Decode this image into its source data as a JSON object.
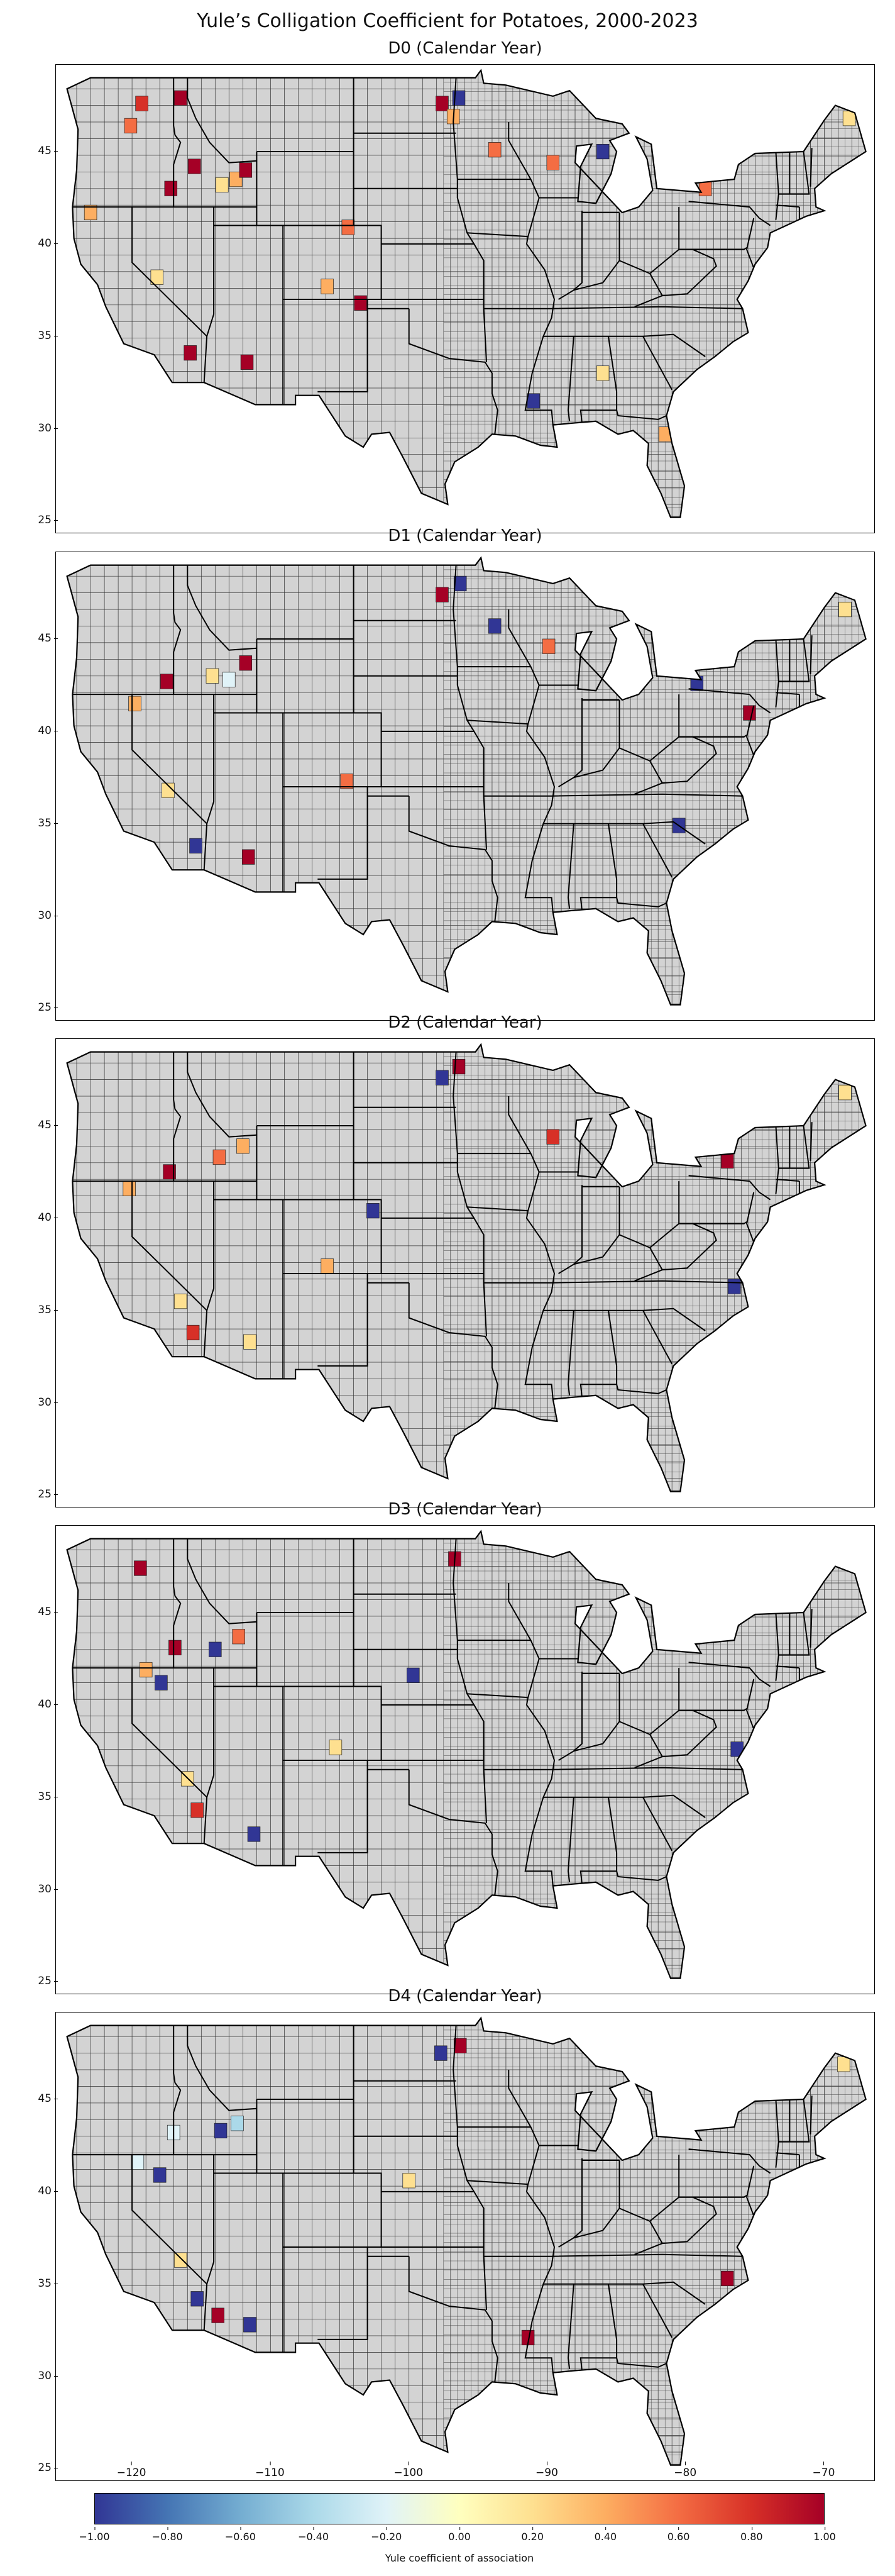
{
  "title": "Yule’s Colligation Coefficient for Potatoes, 2000-2023",
  "panels": [
    {
      "title": "D0 (Calendar Year)"
    },
    {
      "title": "D1 (Calendar Year)"
    },
    {
      "title": "D2 (Calendar Year)"
    },
    {
      "title": "D3 (Calendar Year)"
    },
    {
      "title": "D4 (Calendar Year)"
    }
  ],
  "map": {
    "lat_ticks": [
      "25",
      "30",
      "35",
      "40",
      "45"
    ],
    "lon_ticks": [
      "−120",
      "−110",
      "−100",
      "−90",
      "−80",
      "−70"
    ],
    "no_data_color": "#d3d3d3",
    "border_color": "#000000"
  },
  "colorbar": {
    "label": "Yule coefficient of association",
    "ticks": [
      "−1.00",
      "−0.80",
      "−0.60",
      "−0.40",
      "−0.20",
      "0.00",
      "0.20",
      "0.40",
      "0.60",
      "0.80",
      "1.00"
    ],
    "colormap": "RdYlBu_r",
    "stops": [
      "#313695",
      "#4575b4",
      "#74add1",
      "#abd9e9",
      "#e0f3f8",
      "#ffffbf",
      "#fee090",
      "#fdae61",
      "#f46d43",
      "#d73027",
      "#a50026"
    ]
  },
  "counties": [
    {
      "panel": 0,
      "lon": -117.2,
      "lat": 43.0,
      "value": 0.9
    },
    {
      "panel": 0,
      "lon": -113.5,
      "lat": 43.2,
      "value": 0.1
    },
    {
      "panel": 0,
      "lon": -112.5,
      "lat": 43.5,
      "value": 0.3
    },
    {
      "panel": 0,
      "lon": -111.8,
      "lat": 44.0,
      "value": 1.0
    },
    {
      "panel": 0,
      "lon": -115.5,
      "lat": 44.2,
      "value": 0.9
    },
    {
      "panel": 0,
      "lon": -118.2,
      "lat": 38.2,
      "value": 0.1
    },
    {
      "panel": 0,
      "lon": -115.8,
      "lat": 34.1,
      "value": 0.95
    },
    {
      "panel": 0,
      "lon": -111.7,
      "lat": 33.6,
      "value": 0.95
    },
    {
      "panel": 0,
      "lon": -123.0,
      "lat": 41.7,
      "value": 0.3
    },
    {
      "panel": 0,
      "lon": -120.1,
      "lat": 46.4,
      "value": 0.5
    },
    {
      "panel": 0,
      "lon": -119.3,
      "lat": 47.6,
      "value": 0.7
    },
    {
      "panel": 0,
      "lon": -116.5,
      "lat": 47.9,
      "value": 0.9
    },
    {
      "panel": 0,
      "lon": -105.9,
      "lat": 37.7,
      "value": 0.4
    },
    {
      "panel": 0,
      "lon": -103.5,
      "lat": 36.8,
      "value": 0.9
    },
    {
      "panel": 0,
      "lon": -104.4,
      "lat": 40.9,
      "value": 0.5
    },
    {
      "panel": 0,
      "lon": -97.6,
      "lat": 47.6,
      "value": 1.0
    },
    {
      "panel": 0,
      "lon": -96.8,
      "lat": 46.9,
      "value": 0.3
    },
    {
      "panel": 0,
      "lon": -96.4,
      "lat": 47.9,
      "value": -0.9
    },
    {
      "panel": 0,
      "lon": -93.8,
      "lat": 45.1,
      "value": 0.6
    },
    {
      "panel": 0,
      "lon": -89.6,
      "lat": 44.4,
      "value": 0.6
    },
    {
      "panel": 0,
      "lon": -86.0,
      "lat": 45.0,
      "value": -0.9
    },
    {
      "panel": 0,
      "lon": -78.6,
      "lat": 43.0,
      "value": 0.6
    },
    {
      "panel": 0,
      "lon": -68.2,
      "lat": 46.8,
      "value": 0.1
    },
    {
      "panel": 0,
      "lon": -86.0,
      "lat": 33.0,
      "value": 0.1
    },
    {
      "panel": 0,
      "lon": -91.0,
      "lat": 31.5,
      "value": -0.9
    },
    {
      "panel": 0,
      "lon": -81.5,
      "lat": 29.7,
      "value": 0.4
    },
    {
      "panel": 1,
      "lon": -117.5,
      "lat": 42.7,
      "value": 0.95
    },
    {
      "panel": 1,
      "lon": -114.2,
      "lat": 43.0,
      "value": 0.2
    },
    {
      "panel": 1,
      "lon": -113.0,
      "lat": 42.8,
      "value": -0.2
    },
    {
      "panel": 1,
      "lon": -111.8,
      "lat": 43.7,
      "value": 1.0
    },
    {
      "panel": 1,
      "lon": -119.8,
      "lat": 41.5,
      "value": 0.4
    },
    {
      "panel": 1,
      "lon": -117.4,
      "lat": 36.8,
      "value": 0.1
    },
    {
      "panel": 1,
      "lon": -115.4,
      "lat": 33.8,
      "value": -0.9
    },
    {
      "panel": 1,
      "lon": -111.6,
      "lat": 33.2,
      "value": 0.95
    },
    {
      "panel": 1,
      "lon": -104.5,
      "lat": 37.3,
      "value": 0.6
    },
    {
      "panel": 1,
      "lon": -97.6,
      "lat": 47.4,
      "value": 1.0
    },
    {
      "panel": 1,
      "lon": -96.3,
      "lat": 48.0,
      "value": -0.9
    },
    {
      "panel": 1,
      "lon": -93.8,
      "lat": 45.7,
      "value": -0.9
    },
    {
      "panel": 1,
      "lon": -89.9,
      "lat": 44.6,
      "value": 0.5
    },
    {
      "panel": 1,
      "lon": -79.2,
      "lat": 42.6,
      "value": -0.9
    },
    {
      "panel": 1,
      "lon": -75.4,
      "lat": 41.0,
      "value": 0.9
    },
    {
      "panel": 1,
      "lon": -68.5,
      "lat": 46.6,
      "value": 0.1
    },
    {
      "panel": 1,
      "lon": -80.5,
      "lat": 34.9,
      "value": -0.9
    },
    {
      "panel": 2,
      "lon": -117.3,
      "lat": 42.5,
      "value": 0.95
    },
    {
      "panel": 2,
      "lon": -113.7,
      "lat": 43.3,
      "value": 0.5
    },
    {
      "panel": 2,
      "lon": -112.0,
      "lat": 43.9,
      "value": 0.4
    },
    {
      "panel": 2,
      "lon": -120.2,
      "lat": 41.6,
      "value": 0.4
    },
    {
      "panel": 2,
      "lon": -116.5,
      "lat": 35.5,
      "value": 0.1
    },
    {
      "panel": 2,
      "lon": -115.6,
      "lat": 33.8,
      "value": 0.7
    },
    {
      "panel": 2,
      "lon": -111.5,
      "lat": 33.3,
      "value": 0.1
    },
    {
      "panel": 2,
      "lon": -105.9,
      "lat": 37.4,
      "value": 0.4
    },
    {
      "panel": 2,
      "lon": -102.6,
      "lat": 40.4,
      "value": -0.9
    },
    {
      "panel": 2,
      "lon": -97.6,
      "lat": 47.6,
      "value": -0.9
    },
    {
      "panel": 2,
      "lon": -96.4,
      "lat": 48.2,
      "value": 1.0
    },
    {
      "panel": 2,
      "lon": -89.6,
      "lat": 44.4,
      "value": 0.8
    },
    {
      "panel": 2,
      "lon": -77.0,
      "lat": 43.1,
      "value": 1.0
    },
    {
      "panel": 2,
      "lon": -76.5,
      "lat": 36.3,
      "value": -0.9
    },
    {
      "panel": 2,
      "lon": -68.5,
      "lat": 46.8,
      "value": 0.1
    },
    {
      "panel": 3,
      "lon": -116.9,
      "lat": 43.1,
      "value": 0.9
    },
    {
      "panel": 3,
      "lon": -114.0,
      "lat": 43.0,
      "value": -0.9
    },
    {
      "panel": 3,
      "lon": -112.3,
      "lat": 43.7,
      "value": 0.6
    },
    {
      "panel": 3,
      "lon": -119.4,
      "lat": 47.4,
      "value": 1.0
    },
    {
      "panel": 3,
      "lon": -119.0,
      "lat": 41.9,
      "value": 0.4
    },
    {
      "panel": 3,
      "lon": -117.9,
      "lat": 41.2,
      "value": -0.9
    },
    {
      "panel": 3,
      "lon": -116.0,
      "lat": 36.0,
      "value": 0.1
    },
    {
      "panel": 3,
      "lon": -115.3,
      "lat": 34.3,
      "value": 0.7
    },
    {
      "panel": 3,
      "lon": -111.2,
      "lat": 33.0,
      "value": -0.9
    },
    {
      "panel": 3,
      "lon": -105.3,
      "lat": 37.7,
      "value": 0.1
    },
    {
      "panel": 3,
      "lon": -96.7,
      "lat": 47.9,
      "value": 1.0
    },
    {
      "panel": 3,
      "lon": -99.7,
      "lat": 41.6,
      "value": -0.9
    },
    {
      "panel": 3,
      "lon": -76.3,
      "lat": 37.6,
      "value": -0.9
    },
    {
      "panel": 4,
      "lon": -117.0,
      "lat": 43.2,
      "value": -0.3
    },
    {
      "panel": 4,
      "lon": -113.6,
      "lat": 43.3,
      "value": -0.9
    },
    {
      "panel": 4,
      "lon": -112.4,
      "lat": 43.7,
      "value": -0.4
    },
    {
      "panel": 4,
      "lon": -119.6,
      "lat": 41.6,
      "value": -0.2
    },
    {
      "panel": 4,
      "lon": -118.0,
      "lat": 40.9,
      "value": -0.9
    },
    {
      "panel": 4,
      "lon": -116.5,
      "lat": 36.3,
      "value": 0.1
    },
    {
      "panel": 4,
      "lon": -115.3,
      "lat": 34.2,
      "value": -0.9
    },
    {
      "panel": 4,
      "lon": -113.8,
      "lat": 33.3,
      "value": 0.95
    },
    {
      "panel": 4,
      "lon": -111.5,
      "lat": 32.8,
      "value": -0.9
    },
    {
      "panel": 4,
      "lon": -97.7,
      "lat": 47.5,
      "value": -0.9
    },
    {
      "panel": 4,
      "lon": -96.3,
      "lat": 47.9,
      "value": 1.0
    },
    {
      "panel": 4,
      "lon": -100.0,
      "lat": 40.6,
      "value": 0.1
    },
    {
      "panel": 4,
      "lon": -77.0,
      "lat": 35.3,
      "value": 0.95
    },
    {
      "panel": 4,
      "lon": -68.6,
      "lat": 46.9,
      "value": 0.1
    },
    {
      "panel": 4,
      "lon": -91.4,
      "lat": 32.1,
      "value": 0.95
    }
  ]
}
